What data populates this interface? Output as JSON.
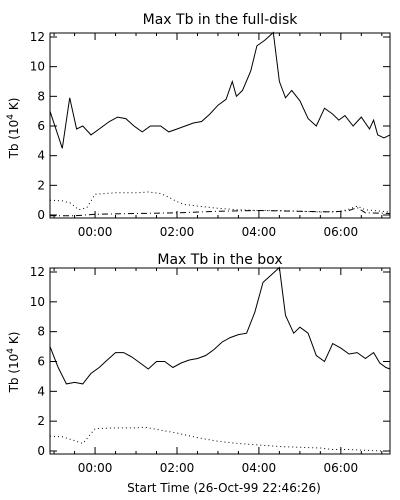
{
  "chart_data": [
    {
      "type": "line",
      "title": "Max Tb in the full-disk",
      "ylabel": "Tb (10",
      "ylabel_sup": "4",
      "ylabel_tail": " K)",
      "xlabel": "",
      "ylim": [
        0,
        12
      ],
      "xlim_hours": [
        -1.1,
        7.2
      ],
      "x_ticks": [
        {
          "hour": 0,
          "label": "00:00"
        },
        {
          "hour": 2,
          "label": "02:00"
        },
        {
          "hour": 4,
          "label": "04:00"
        },
        {
          "hour": 6,
          "label": "06:00"
        }
      ],
      "y_ticks": [
        0,
        2,
        4,
        6,
        8,
        10,
        12
      ],
      "series": [
        {
          "style": "solid",
          "x": [
            -1.1,
            -0.8,
            -0.62,
            -0.45,
            -0.3,
            -0.1,
            0.1,
            0.35,
            0.55,
            0.75,
            0.95,
            1.15,
            1.35,
            1.6,
            1.8,
            2.0,
            2.2,
            2.4,
            2.6,
            2.8,
            3.0,
            3.2,
            3.35,
            3.45,
            3.6,
            3.8,
            3.95,
            4.15,
            4.35,
            4.5,
            4.65,
            4.8,
            5.0,
            5.2,
            5.4,
            5.6,
            5.8,
            5.95,
            6.1,
            6.3,
            6.5,
            6.7,
            6.8,
            6.9,
            7.05,
            7.2
          ],
          "y": [
            7.0,
            4.5,
            7.9,
            5.8,
            6.0,
            5.4,
            5.8,
            6.3,
            6.6,
            6.5,
            6.0,
            5.6,
            6.0,
            6.0,
            5.6,
            5.8,
            6.0,
            6.2,
            6.3,
            6.8,
            7.4,
            7.8,
            9.0,
            8.0,
            8.4,
            9.7,
            11.4,
            11.8,
            12.3,
            9.0,
            7.9,
            8.4,
            7.7,
            6.5,
            6.0,
            7.2,
            6.8,
            6.4,
            6.7,
            6.0,
            6.6,
            5.8,
            6.4,
            5.4,
            5.2,
            5.4
          ]
        },
        {
          "style": "dotted",
          "x": [
            -1.1,
            -0.8,
            -0.6,
            -0.4,
            -0.2,
            0.0,
            0.5,
            1.0,
            1.3,
            1.6,
            1.8,
            2.0,
            2.2,
            2.5,
            3.0,
            3.5,
            4.0,
            4.5,
            5.0,
            5.5,
            6.0,
            6.2,
            6.4,
            6.6,
            6.8,
            7.0,
            7.2
          ],
          "y": [
            1.0,
            0.95,
            0.8,
            0.35,
            0.5,
            1.4,
            1.5,
            1.5,
            1.55,
            1.45,
            1.2,
            0.9,
            0.7,
            0.6,
            0.45,
            0.35,
            0.3,
            0.3,
            0.25,
            0.2,
            0.25,
            0.4,
            0.6,
            0.35,
            0.3,
            0.25,
            0.2
          ]
        },
        {
          "style": "dashdot",
          "x": [
            -1.1,
            -0.5,
            0.0,
            1.0,
            2.0,
            3.0,
            4.0,
            5.0,
            5.8,
            6.2,
            6.4,
            6.6,
            7.2
          ],
          "y": [
            -0.05,
            -0.05,
            0.05,
            0.1,
            0.15,
            0.25,
            0.3,
            0.25,
            0.2,
            0.3,
            0.5,
            0.15,
            0.1
          ]
        }
      ]
    },
    {
      "type": "line",
      "title": "Max Tb in the box",
      "ylabel": "Tb (10",
      "ylabel_sup": "4",
      "ylabel_tail": " K)",
      "xlabel": "Start Time (26-Oct-99 22:46:26)",
      "ylim": [
        0,
        12
      ],
      "xlim_hours": [
        -1.1,
        7.2
      ],
      "x_ticks": [
        {
          "hour": 0,
          "label": "00:00"
        },
        {
          "hour": 2,
          "label": "02:00"
        },
        {
          "hour": 4,
          "label": "04:00"
        },
        {
          "hour": 6,
          "label": "06:00"
        }
      ],
      "y_ticks": [
        0,
        2,
        4,
        6,
        8,
        10,
        12
      ],
      "series": [
        {
          "style": "solid",
          "x": [
            -1.1,
            -0.9,
            -0.7,
            -0.5,
            -0.3,
            -0.1,
            0.1,
            0.3,
            0.5,
            0.7,
            0.9,
            1.1,
            1.3,
            1.5,
            1.7,
            1.9,
            2.1,
            2.3,
            2.5,
            2.7,
            2.9,
            3.1,
            3.3,
            3.5,
            3.7,
            3.9,
            4.1,
            4.3,
            4.5,
            4.65,
            4.85,
            5.0,
            5.2,
            5.4,
            5.6,
            5.8,
            6.0,
            6.2,
            6.4,
            6.6,
            6.8,
            6.95,
            7.1,
            7.2
          ],
          "y": [
            7.0,
            5.6,
            4.5,
            4.6,
            4.5,
            5.2,
            5.6,
            6.1,
            6.6,
            6.6,
            6.3,
            5.9,
            5.5,
            6.0,
            6.0,
            5.6,
            5.9,
            6.1,
            6.2,
            6.4,
            6.8,
            7.3,
            7.6,
            7.8,
            7.9,
            9.3,
            11.3,
            11.8,
            12.3,
            9.1,
            7.9,
            8.3,
            7.9,
            6.4,
            6.0,
            7.2,
            6.9,
            6.5,
            6.6,
            6.2,
            6.6,
            5.9,
            5.6,
            5.5
          ]
        },
        {
          "style": "dotted",
          "x": [
            -1.1,
            -0.8,
            -0.5,
            -0.3,
            0.0,
            0.5,
            1.0,
            1.2,
            1.5,
            2.0,
            2.5,
            3.0,
            3.5,
            4.0,
            4.5,
            5.0,
            5.5,
            5.8,
            6.2,
            6.6,
            7.0,
            7.2
          ],
          "y": [
            1.0,
            0.95,
            0.7,
            0.5,
            1.5,
            1.55,
            1.55,
            1.6,
            1.45,
            1.2,
            0.9,
            0.65,
            0.5,
            0.4,
            0.3,
            0.25,
            0.2,
            0.1,
            0.1,
            0.05,
            0.0,
            0.0
          ]
        }
      ]
    }
  ]
}
